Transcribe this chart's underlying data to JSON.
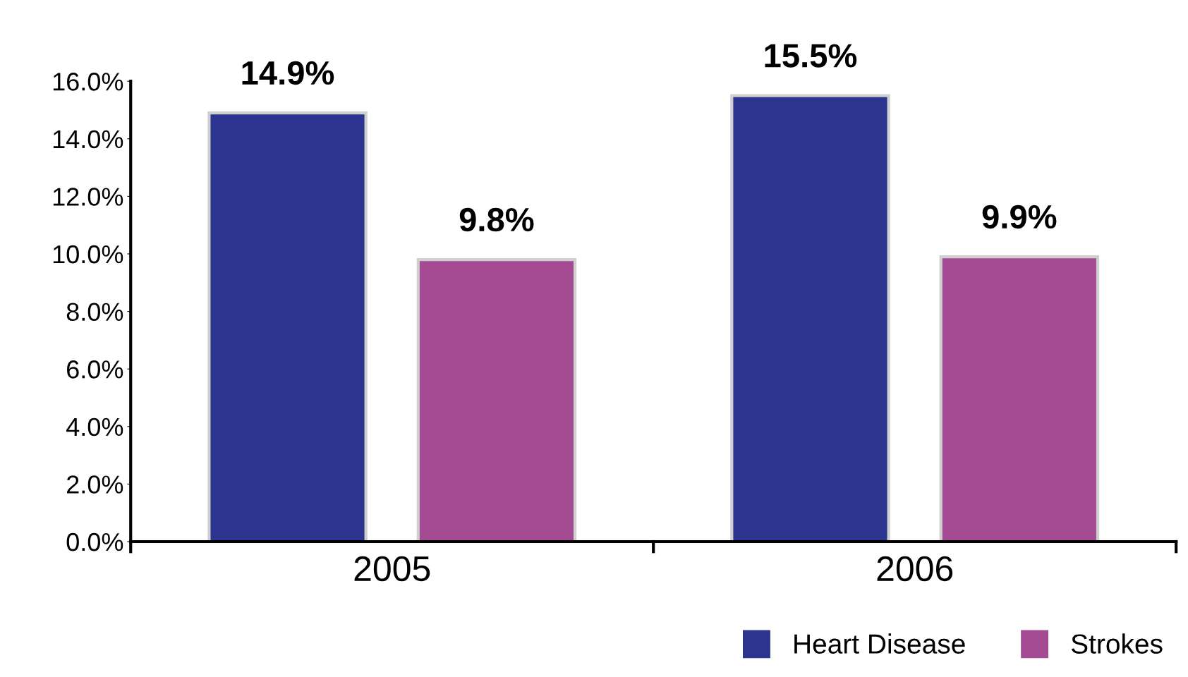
{
  "chart_data": {
    "type": "bar",
    "categories": [
      "2005",
      "2006"
    ],
    "series": [
      {
        "name": "Heart Disease",
        "color": "#2b3590",
        "values": [
          14.9,
          15.5
        ],
        "value_labels": [
          "14.9%",
          "15.5%"
        ]
      },
      {
        "name": "Strokes",
        "color": "#a54b94",
        "values": [
          9.8,
          9.9
        ],
        "value_labels": [
          "9.8%",
          "9.9%"
        ]
      }
    ],
    "ylim": [
      0,
      16
    ],
    "yticks": [
      {
        "value": 0,
        "label": "0.0%"
      },
      {
        "value": 2,
        "label": "2.0%"
      },
      {
        "value": 4,
        "label": "4.0%"
      },
      {
        "value": 6,
        "label": "6.0%"
      },
      {
        "value": 8,
        "label": "8.0%"
      },
      {
        "value": 10,
        "label": "10.0%"
      },
      {
        "value": 12,
        "label": "12.0%"
      },
      {
        "value": 14,
        "label": "14.0%"
      },
      {
        "value": 16,
        "label": "16.0%"
      }
    ],
    "grid": false,
    "legend": "bottom right"
  }
}
